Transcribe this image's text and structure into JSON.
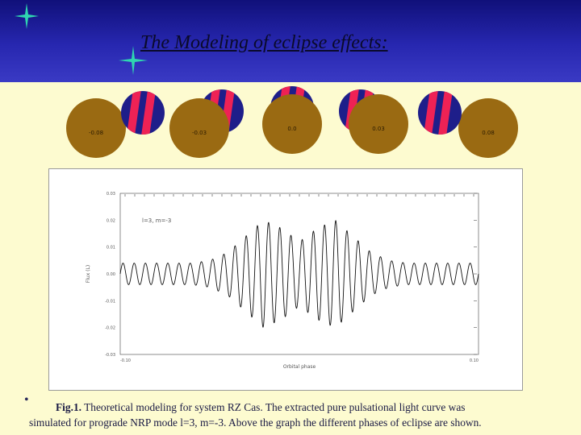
{
  "slide": {
    "title": "The Modeling of eclipse effects:",
    "colors": {
      "header": "#2727b0",
      "background": "#fdfbd0",
      "star": "#2fd6b0",
      "primary_disk": "#9a6a12",
      "pulsating_blue": "#1e1e8a",
      "pulsating_red": "#ee2255"
    }
  },
  "phases": [
    {
      "label": "-0.08"
    },
    {
      "label": "-0.03"
    },
    {
      "label": "0.0"
    },
    {
      "label": "0.03"
    },
    {
      "label": "0.08"
    }
  ],
  "caption": {
    "bold": "Fig.1.",
    "line1": " Theoretical modeling for system RZ Cas. The extracted  pure  pulsational light curve was",
    "line2": "simulated for prograde NRP mode l=3, m=-3. Above the graph the different phases of eclipse are shown."
  },
  "chart_data": {
    "type": "line",
    "title": "",
    "legend_text": "l=3, m=-3",
    "xlabel": "Orbital phase",
    "ylabel": "Flux (L)",
    "xlim": [
      -0.1,
      0.1
    ],
    "ylim": [
      -0.03,
      0.03
    ],
    "x_ticks": [
      "-0.10",
      "0.10"
    ],
    "y_ticks": [
      "0.03",
      "0.02",
      "0.01",
      "0.00",
      "-0.01",
      "-0.02",
      "-0.03"
    ],
    "series": [
      {
        "name": "",
        "x": [
          -0.1,
          -0.09,
          -0.08,
          -0.07,
          -0.06,
          -0.05,
          -0.04,
          -0.03,
          -0.02,
          -0.01,
          0.0,
          0.01,
          0.02,
          0.03,
          0.04,
          0.05,
          0.06,
          0.07,
          0.08,
          0.09,
          0.1
        ],
        "y_envelope": [
          0.004,
          0.004,
          0.004,
          0.004,
          0.004,
          0.005,
          0.008,
          0.014,
          0.02,
          0.017,
          0.012,
          0.017,
          0.02,
          0.014,
          0.008,
          0.005,
          0.004,
          0.004,
          0.004,
          0.004,
          0.004
        ],
        "cycles": 32
      }
    ]
  }
}
